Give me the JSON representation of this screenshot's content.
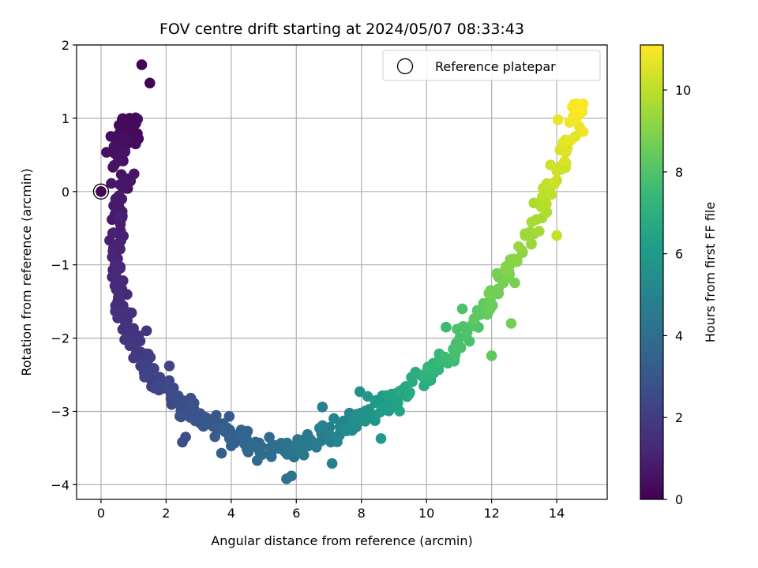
{
  "chart_data": {
    "type": "scatter",
    "title": "FOV centre drift starting at 2024/05/07 08:33:43",
    "xlabel": "Angular distance from reference (arcmin)",
    "ylabel": "Rotation from reference (arcmin)",
    "xlim": [
      -0.75,
      15.55
    ],
    "ylim": [
      -4.2,
      2.0
    ],
    "xticks": [
      0,
      2,
      4,
      6,
      8,
      10,
      12,
      14
    ],
    "yticks": [
      -4,
      -3,
      -2,
      -1,
      0,
      1,
      2
    ],
    "grid": true,
    "legend": {
      "position": "top-right",
      "entries": [
        "Reference platepar"
      ]
    },
    "reference_point": {
      "x": 0,
      "y": 0
    },
    "colorbar": {
      "label": "Hours from first FF file",
      "range": [
        0,
        11.1
      ],
      "ticks": [
        0,
        2,
        4,
        6,
        8,
        10
      ],
      "colormap": "viridis",
      "colors": [
        "#440154",
        "#482878",
        "#3e4989",
        "#31688e",
        "#26828e",
        "#1f9e89",
        "#35b779",
        "#6ece58",
        "#b5de2b",
        "#fde725"
      ]
    },
    "series": [
      {
        "drift_curve": [
          [
            1.0,
            0.7,
            0.28
          ],
          [
            0.85,
            0.8,
            0.3
          ],
          [
            0.9,
            0.99,
            0.25
          ],
          [
            0.65,
            0.82,
            0.35
          ],
          [
            0.6,
            0.5,
            0.45
          ],
          [
            0.6,
            0.45,
            0.5
          ],
          [
            0.62,
            0.1,
            0.65
          ],
          [
            0.5,
            -0.2,
            0.8
          ],
          [
            0.5,
            -0.45,
            0.9
          ],
          [
            0.45,
            -0.7,
            1.0
          ],
          [
            0.5,
            -1.0,
            1.15
          ],
          [
            0.55,
            -1.3,
            1.3
          ],
          [
            0.6,
            -1.55,
            1.4
          ],
          [
            0.7,
            -1.7,
            1.5
          ],
          [
            0.9,
            -1.9,
            1.65
          ],
          [
            1.1,
            -2.1,
            1.8
          ],
          [
            1.3,
            -2.3,
            1.95
          ],
          [
            1.5,
            -2.45,
            2.1
          ],
          [
            1.8,
            -2.6,
            2.25
          ],
          [
            2.1,
            -2.7,
            2.4
          ],
          [
            2.4,
            -2.85,
            2.55
          ],
          [
            2.7,
            -2.95,
            2.7
          ],
          [
            3.0,
            -3.05,
            2.9
          ],
          [
            3.3,
            -3.15,
            3.05
          ],
          [
            3.6,
            -3.2,
            3.2
          ],
          [
            4.0,
            -3.3,
            3.35
          ],
          [
            4.4,
            -3.4,
            3.55
          ],
          [
            4.8,
            -3.45,
            3.7
          ],
          [
            5.2,
            -3.5,
            3.9
          ],
          [
            5.6,
            -3.5,
            4.1
          ],
          [
            6.0,
            -3.48,
            4.3
          ],
          [
            6.4,
            -3.43,
            4.5
          ],
          [
            6.8,
            -3.38,
            4.7
          ],
          [
            7.2,
            -3.3,
            4.95
          ],
          [
            7.6,
            -3.2,
            5.2
          ],
          [
            8.0,
            -3.1,
            5.5
          ],
          [
            8.4,
            -3.0,
            5.8
          ],
          [
            8.8,
            -2.9,
            6.1
          ],
          [
            9.2,
            -2.8,
            6.4
          ],
          [
            9.6,
            -2.65,
            6.7
          ],
          [
            10.0,
            -2.5,
            7.0
          ],
          [
            10.4,
            -2.35,
            7.3
          ],
          [
            10.8,
            -2.2,
            7.6
          ],
          [
            11.2,
            -2.0,
            7.9
          ],
          [
            11.6,
            -1.75,
            8.2
          ],
          [
            12.0,
            -1.5,
            8.5
          ],
          [
            12.4,
            -1.2,
            8.8
          ],
          [
            12.8,
            -0.9,
            9.15
          ],
          [
            13.2,
            -0.55,
            9.5
          ],
          [
            13.6,
            -0.15,
            9.85
          ],
          [
            13.9,
            0.2,
            10.2
          ],
          [
            14.2,
            0.55,
            10.5
          ],
          [
            14.5,
            0.9,
            10.8
          ],
          [
            14.7,
            1.1,
            11.0
          ]
        ]
      }
    ],
    "outliers": [
      [
        1.25,
        1.73,
        0.05
      ],
      [
        1.5,
        1.48,
        0.08
      ],
      [
        1.0,
        0.78,
        0.28
      ],
      [
        0.75,
        0.75,
        0.3
      ],
      [
        2.5,
        -3.42,
        2.6
      ],
      [
        2.6,
        -3.35,
        2.65
      ],
      [
        2.1,
        -2.38,
        2.3
      ],
      [
        1.5,
        -2.55,
        2.05
      ],
      [
        1.4,
        -1.9,
        1.7
      ],
      [
        1.0,
        -2.27,
        1.85
      ],
      [
        3.7,
        -3.57,
        3.3
      ],
      [
        4.0,
        -3.47,
        3.4
      ],
      [
        4.8,
        -3.67,
        3.75
      ],
      [
        5.7,
        -3.92,
        4.15
      ],
      [
        5.85,
        -3.88,
        4.2
      ],
      [
        7.1,
        -3.71,
        4.9
      ],
      [
        6.8,
        -2.94,
        4.85
      ],
      [
        8.6,
        -3.37,
        6.0
      ],
      [
        7.95,
        -2.73,
        5.55
      ],
      [
        12.0,
        -2.24,
        8.3
      ],
      [
        12.6,
        -1.8,
        8.7
      ],
      [
        14.0,
        -0.6,
        10.1
      ],
      [
        11.1,
        -1.6,
        7.9
      ],
      [
        10.6,
        -1.85,
        7.55
      ]
    ]
  }
}
